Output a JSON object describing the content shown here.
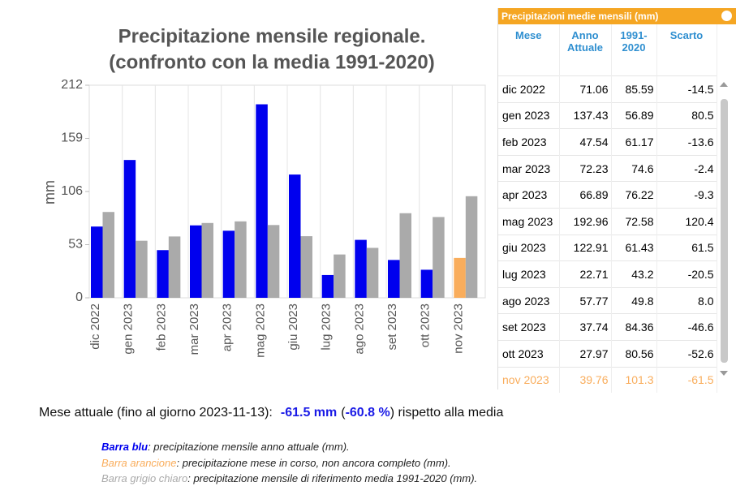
{
  "chart_data": {
    "type": "bar",
    "title": [
      "Precipitazione mensile regionale.",
      "(confronto con la media 1991-2020)"
    ],
    "y_label": "mm",
    "categories": [
      "dic 2022",
      "gen 2023",
      "feb 2023",
      "mar 2023",
      "apr 2023",
      "mag 2023",
      "giu 2023",
      "lug 2023",
      "ago 2023",
      "set 2023",
      "ott 2023",
      "nov 2023"
    ],
    "series": [
      {
        "colors": [
          "#0000ee",
          "#0000ee",
          "#0000ee",
          "#0000ee",
          "#0000ee",
          "#0000ee",
          "#0000ee",
          "#0000ee",
          "#0000ee",
          "#0000ee",
          "#0000ee",
          "#f9ad5c"
        ],
        "values": [
          71.06,
          137.43,
          47.54,
          72.23,
          66.89,
          192.96,
          122.91,
          22.71,
          57.77,
          37.74,
          27.97,
          39.76
        ]
      },
      {
        "color": "#aaaaaa",
        "values": [
          85.59,
          56.89,
          61.17,
          74.6,
          76.22,
          72.58,
          61.43,
          43.2,
          49.8,
          84.36,
          80.56,
          101.3
        ]
      }
    ],
    "ylim": [
      0,
      212
    ],
    "yticks": [
      0,
      53,
      106,
      159,
      212
    ]
  },
  "table": {
    "title": "Precipitazioni medie mensili (mm)",
    "headers": [
      "Mese",
      "Anno Attuale",
      "1991-2020",
      "Scarto"
    ],
    "rows": [
      [
        "dic 2022",
        "71.06",
        "85.59",
        "-14.5"
      ],
      [
        "gen 2023",
        "137.43",
        "56.89",
        "80.5"
      ],
      [
        "feb 2023",
        "47.54",
        "61.17",
        "-13.6"
      ],
      [
        "mar 2023",
        "72.23",
        "74.6",
        "-2.4"
      ],
      [
        "apr 2023",
        "66.89",
        "76.22",
        "-9.3"
      ],
      [
        "mag 2023",
        "192.96",
        "72.58",
        "120.4"
      ],
      [
        "giu 2023",
        "122.91",
        "61.43",
        "61.5"
      ],
      [
        "lug 2023",
        "22.71",
        "43.2",
        "-20.5"
      ],
      [
        "ago 2023",
        "57.77",
        "49.8",
        "8.0"
      ],
      [
        "set 2023",
        "37.74",
        "84.36",
        "-46.6"
      ],
      [
        "ott 2023",
        "27.97",
        "80.56",
        "-52.6"
      ],
      [
        "nov 2023",
        "39.76",
        "101.3",
        "-61.5"
      ]
    ]
  },
  "summary": [
    "Mese attuale (fino al giorno 2023-11-13):",
    "-61.5 mm",
    "(",
    "-60.8 %",
    ") rispetto alla media"
  ],
  "notes": [
    {
      "key": "Barra blu",
      "text": ": precipitazione mensile anno attuale (mm)."
    },
    {
      "key": "Barra arancione",
      "text": ": precipitazione mese in corso, non ancora completo (mm)."
    },
    {
      "key": "Barra grigio chiaro",
      "text": ": precipitazione mensile di riferimento media 1991-2020 (mm)."
    }
  ]
}
